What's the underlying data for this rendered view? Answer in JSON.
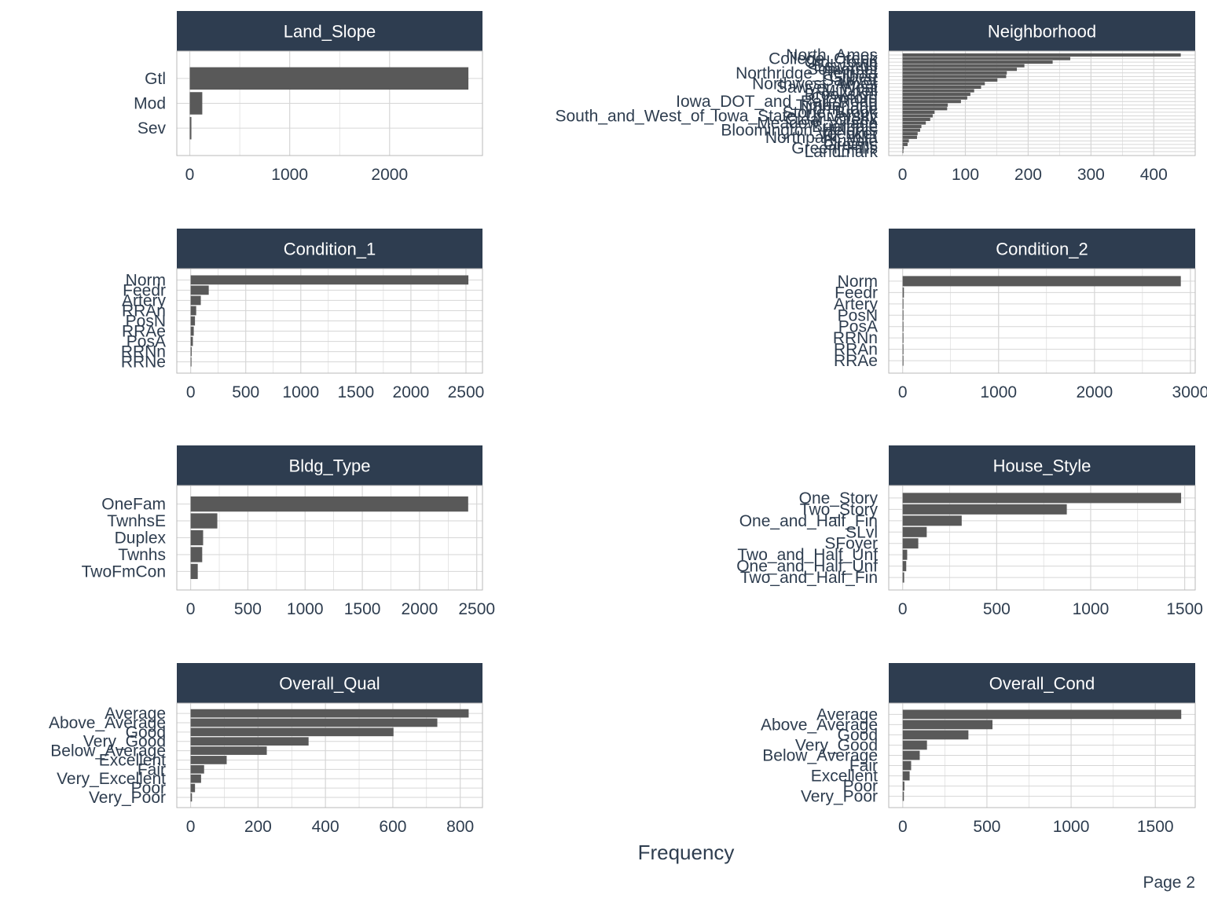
{
  "colors": {
    "strip": "#2e3d50",
    "bar": "#595959",
    "grid": "#d6d6d6",
    "panel_border": "#b9b9b9",
    "text": "#2e3d4f"
  },
  "page_label": "Page 2",
  "chart_data": {
    "type": "bar",
    "orientation": "horizontal",
    "xlabel": "Frequency",
    "grid": true,
    "panels": [
      {
        "title": "Land_Slope",
        "categories": [
          "Gtl",
          "Mod",
          "Sev"
        ],
        "values": [
          2789,
          125,
          16
        ],
        "xlim": [
          -130,
          2930
        ],
        "xticks": [
          0,
          1000,
          2000
        ]
      },
      {
        "title": "Neighborhood",
        "categories": [
          "North_Ames",
          "College_Creek",
          "Old_Town",
          "Edwards",
          "Somerset",
          "Northridge_Heights",
          "Gilbert",
          "Sawyer",
          "Northwest_Ames",
          "Sawyer_West",
          "Mitchell",
          "Brookside",
          "Crawford",
          "Iowa_DOT_and_Rail_Road",
          "Timberland",
          "Northridge",
          "Stone_Brook",
          "South_and_West_of_Iowa_State_University",
          "Clear_Creek",
          "Meadow_Village",
          "Briardale",
          "Bloomington_Heights",
          "Veenker",
          "Northpark_Villa",
          "Blueste",
          "Greens",
          "Green_Hills",
          "Landmark"
        ],
        "values": [
          443,
          267,
          239,
          194,
          182,
          166,
          165,
          151,
          131,
          125,
          114,
          108,
          103,
          93,
          72,
          71,
          51,
          48,
          44,
          37,
          30,
          28,
          24,
          23,
          10,
          8,
          2,
          1
        ],
        "xlim": [
          -22,
          466
        ],
        "xticks": [
          0,
          100,
          200,
          300,
          400
        ]
      },
      {
        "title": "Condition_1",
        "categories": [
          "Norm",
          "Feedr",
          "Artery",
          "RRAn",
          "PosN",
          "RRAe",
          "PosA",
          "RRNn",
          "RRNe"
        ],
        "values": [
          2522,
          164,
          92,
          50,
          39,
          28,
          20,
          9,
          6
        ],
        "xlim": [
          -126,
          2650
        ],
        "xticks": [
          0,
          500,
          1000,
          1500,
          2000,
          2500
        ]
      },
      {
        "title": "Condition_2",
        "categories": [
          "Norm",
          "Feedr",
          "Artery",
          "PosN",
          "PosA",
          "RRNn",
          "RRAn",
          "RRAe"
        ],
        "values": [
          2900,
          13,
          5,
          4,
          4,
          2,
          1,
          1
        ],
        "xlim": [
          -145,
          3050
        ],
        "xticks": [
          0,
          1000,
          2000,
          3000
        ]
      },
      {
        "title": "Bldg_Type",
        "categories": [
          "OneFam",
          "TwnhsE",
          "Duplex",
          "Twnhs",
          "TwoFmCon"
        ],
        "values": [
          2425,
          233,
          109,
          101,
          62
        ],
        "xlim": [
          -121,
          2550
        ],
        "xticks": [
          0,
          500,
          1000,
          1500,
          2000,
          2500
        ]
      },
      {
        "title": "House_Style",
        "categories": [
          "One_Story",
          "Two_Story",
          "One_and_Half_Fin",
          "SLvl",
          "SFoyer",
          "Two_and_Half_Unf",
          "One_and_Half_Unf",
          "Two_and_Half_Fin"
        ],
        "values": [
          1481,
          873,
          314,
          128,
          83,
          24,
          19,
          8
        ],
        "xlim": [
          -74,
          1556
        ],
        "xticks": [
          0,
          500,
          1000,
          1500
        ]
      },
      {
        "title": "Overall_Qual",
        "categories": [
          "Average",
          "Above_Average",
          "Good",
          "Very_Good",
          "Below_Average",
          "Excellent",
          "Fair",
          "Very_Excellent",
          "Poor",
          "Very_Poor"
        ],
        "values": [
          825,
          732,
          602,
          350,
          226,
          107,
          40,
          31,
          13,
          4
        ],
        "xlim": [
          -41,
          866
        ],
        "xticks": [
          0,
          200,
          400,
          600,
          800
        ]
      },
      {
        "title": "Overall_Cond",
        "categories": [
          "Average",
          "Above_Average",
          "Good",
          "Very_Good",
          "Below_Average",
          "Fair",
          "Excellent",
          "Poor",
          "Very_Poor"
        ],
        "values": [
          1654,
          533,
          390,
          144,
          101,
          50,
          41,
          10,
          7
        ],
        "xlim": [
          -83,
          1737
        ],
        "xticks": [
          0,
          500,
          1000,
          1500
        ]
      }
    ]
  }
}
